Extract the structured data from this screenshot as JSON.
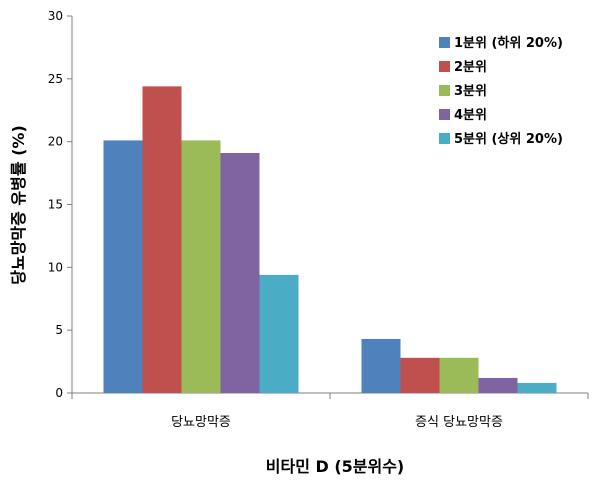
{
  "chart_data": {
    "type": "bar",
    "categories": [
      "당뇨망막증",
      "증식 당뇨망막증"
    ],
    "series": [
      {
        "name": "1분위 (하위 20%)",
        "values": [
          20.1,
          4.3
        ],
        "color": "#4F81BD"
      },
      {
        "name": "2분위",
        "values": [
          24.4,
          2.8
        ],
        "color": "#C0504D"
      },
      {
        "name": "3분위",
        "values": [
          20.1,
          2.8
        ],
        "color": "#9BBB59"
      },
      {
        "name": "4분위",
        "values": [
          19.1,
          1.2
        ],
        "color": "#8064A2"
      },
      {
        "name": "5분위 (상위 20%)",
        "values": [
          9.4,
          0.8
        ],
        "color": "#4BACC6"
      }
    ],
    "xlabel": "비타민 D (5분위수)",
    "ylabel": "당뇨망막증 유병률 (%)",
    "ylim": [
      0,
      30
    ],
    "yticks": [
      "0",
      "5",
      "10",
      "15",
      "20",
      "25",
      "30"
    ],
    "grid": false,
    "legend": "top-right"
  }
}
